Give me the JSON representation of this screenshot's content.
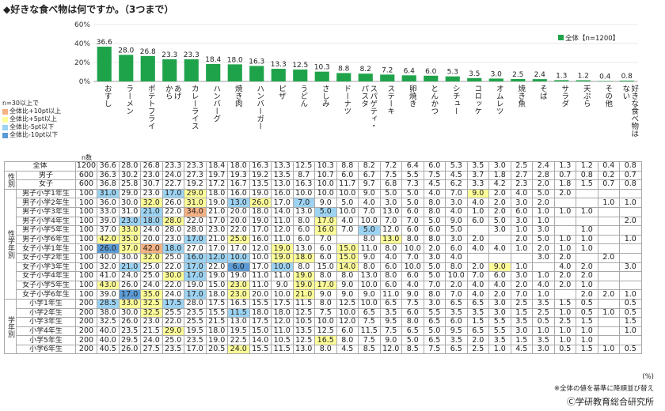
{
  "title": "◆好きな食べ物は何ですか。（3つまで）",
  "chart_data": {
    "type": "bar",
    "title": "◆好きな食べ物は何ですか。（3つまで）",
    "ylim": [
      0,
      60
    ],
    "yticks": [
      "0%",
      "20%",
      "40%",
      "60%"
    ],
    "legend": "全体【n=1200】",
    "legend_position": "top-right",
    "bar_color": "#1fa34a",
    "categories": [
      "おすし",
      "ラーメン",
      "ポテトフライ",
      "からあげ・フライドチキン",
      "カレーライス",
      "ハンバーグ",
      "焼き肉",
      "ハンバーガー",
      "ピザ",
      "うどん",
      "さしみ",
      "ドーナツ",
      "スパゲティ・パスタ",
      "ステーキ",
      "卵焼き",
      "とんかつ",
      "シチュー",
      "コロッケ",
      "オムレツ",
      "焼き魚",
      "そば",
      "サラダ",
      "天ぷら",
      "その他",
      "好きな食べ物はない"
    ],
    "category_labels": [
      "おすし",
      "ラーメン",
      "ポテトフライ",
      "から\nあげ",
      "カレーライス",
      "ハンバーグ",
      "焼き肉",
      "ハンバーガー",
      "ピザ",
      "うどん",
      "さしみ",
      "ドーナツ",
      "パスタ\nスパゲティ・",
      "ステーキ",
      "卵焼き",
      "とんかつ",
      "シチュー",
      "コロッケ",
      "オムレツ",
      "焼き魚",
      "そば",
      "サラダ",
      "天ぷら",
      "その他",
      "ない\n好きな食べ物は"
    ],
    "values": [
      36.6,
      28.0,
      26.8,
      23.3,
      23.3,
      18.4,
      18.0,
      16.3,
      13.3,
      12.5,
      10.3,
      8.8,
      8.2,
      7.2,
      6.4,
      6.0,
      5.3,
      3.5,
      3.0,
      2.5,
      2.4,
      1.3,
      1.2,
      0.4,
      0.8
    ],
    "value_labels": [
      "36.6",
      "28.0",
      "26.8",
      "23.3",
      "23.3",
      "18.4",
      "18.0",
      "16.3",
      "13.3",
      "12.5",
      "10.3",
      "8.8",
      "8.2",
      "7.2",
      "6.4",
      "6.0",
      "5.3",
      "3.5",
      "3.0",
      "2.5",
      "2.4",
      "1.3",
      "1.2",
      "0.4",
      "0.8"
    ]
  },
  "legend": {
    "heading": "n=30以上で",
    "items": [
      {
        "label": "全体比+10pt以上",
        "color": "#f4b183"
      },
      {
        "label": "全体比+5pt以上",
        "color": "#ffff99"
      },
      {
        "label": "全体比-5pt以下",
        "color": "#9dd3f2"
      },
      {
        "label": "全体比-10pt以下",
        "color": "#5b9bd5"
      }
    ]
  },
  "n_label": "n数",
  "colors": {
    "hi10": "#f4b183",
    "hi5": "#ffff99",
    "lo5": "#9dd3f2",
    "lo10": "#5b9bd5"
  },
  "table": {
    "groups": [
      {
        "label": "",
        "rows": [
          {
            "name": "全体",
            "n": "1200",
            "values": [
              "36.6",
              "28.0",
              "26.8",
              "23.3",
              "23.3",
              "18.4",
              "18.0",
              "16.3",
              "13.3",
              "12.5",
              "10.3",
              "8.8",
              "8.2",
              "7.2",
              "6.4",
              "6.0",
              "5.3",
              "3.5",
              "3.0",
              "2.5",
              "2.4",
              "1.3",
              "1.2",
              "0.4",
              "0.8"
            ],
            "hl": {}
          }
        ]
      },
      {
        "label": "性別",
        "rows": [
          {
            "name": "男子",
            "n": "600",
            "values": [
              "36.3",
              "30.2",
              "23.0",
              "24.0",
              "27.3",
              "19.7",
              "19.3",
              "19.2",
              "13.5",
              "8.7",
              "10.7",
              "6.0",
              "6.7",
              "7.5",
              "5.5",
              "7.5",
              "4.5",
              "3.7",
              "1.8",
              "2.7",
              "2.8",
              "0.7",
              "0.8",
              "0.2",
              "0.7"
            ],
            "hl": {}
          },
          {
            "name": "女子",
            "n": "600",
            "values": [
              "36.8",
              "25.8",
              "30.7",
              "22.7",
              "19.2",
              "17.2",
              "16.7",
              "13.5",
              "13.0",
              "16.3",
              "10.0",
              "11.7",
              "9.7",
              "6.8",
              "7.3",
              "4.5",
              "6.2",
              "3.3",
              "4.2",
              "2.3",
              "2.0",
              "1.8",
              "1.5",
              "0.7",
              "0.8"
            ],
            "hl": {}
          }
        ]
      },
      {
        "label": "性学年別",
        "rows": [
          {
            "name": "男子小学1年生",
            "n": "100",
            "values": [
              "31.0",
              "29.0",
              "23.0",
              "17.0",
              "29.0",
              "18.0",
              "16.0",
              "19.0",
              "16.0",
              "10.0",
              "10.0",
              "10.0",
              "9.0",
              "5.0",
              "5.0",
              "4.0",
              "7.0",
              "9.0",
              "2.0",
              "4.0",
              "5.0",
              "2.0",
              "",
              "",
              ""
            ],
            "hl": {
              "0": "lo5",
              "3": "lo5",
              "4": "hi5",
              "17": "hi5"
            }
          },
          {
            "name": "男子小学2年生",
            "n": "100",
            "values": [
              "36.0",
              "30.0",
              "32.0",
              "26.0",
              "31.0",
              "19.0",
              "13.0",
              "26.0",
              "17.0",
              "7.0",
              "9.0",
              "5.0",
              "4.0",
              "3.0",
              "5.0",
              "8.0",
              "3.0",
              "4.0",
              "2.0",
              "3.0",
              "2.0",
              "",
              "",
              "1.0",
              "1.0"
            ],
            "hl": {
              "2": "hi5",
              "4": "hi5",
              "6": "lo5",
              "7": "hi5",
              "9": "lo5"
            }
          },
          {
            "name": "男子小学3年生",
            "n": "100",
            "values": [
              "33.0",
              "31.0",
              "21.0",
              "22.0",
              "34.0",
              "21.0",
              "20.0",
              "18.0",
              "14.0",
              "13.0",
              "5.0",
              "10.0",
              "7.0",
              "13.0",
              "6.0",
              "8.0",
              "4.0",
              "1.0",
              "2.0",
              "6.0",
              "1.0",
              "1.0",
              "1.0",
              "",
              ""
            ],
            "hl": {
              "2": "lo5",
              "4": "hi10",
              "10": "lo5"
            }
          },
          {
            "name": "男子小学4年生",
            "n": "100",
            "values": [
              "39.0",
              "23.0",
              "18.0",
              "28.0",
              "22.0",
              "17.0",
              "20.0",
              "19.0",
              "11.0",
              "8.0",
              "17.0",
              "4.0",
              "10.0",
              "7.0",
              "7.0",
              "5.0",
              "9.0",
              "6.0",
              "5.0",
              "3.0",
              "1.0",
              "",
              "",
              "",
              "2.0"
            ],
            "hl": {
              "1": "lo5",
              "2": "lo5",
              "3": "hi5",
              "10": "hi5"
            }
          },
          {
            "name": "男子小学5年生",
            "n": "100",
            "values": [
              "37.0",
              "33.0",
              "24.0",
              "28.0",
              "28.0",
              "23.0",
              "22.0",
              "17.0",
              "12.0",
              "6.0",
              "16.0",
              "7.0",
              "5.0",
              "12.0",
              "6.0",
              "6.0",
              "5.0",
              "",
              "3.0",
              "1.0",
              "3.0",
              "",
              "1.0",
              "",
              ""
            ],
            "hl": {
              "1": "hi5",
              "10": "hi5",
              "12": "lo5"
            }
          },
          {
            "name": "男子小学6年生",
            "n": "100",
            "values": [
              "42.0",
              "35.0",
              "20.0",
              "23.0",
              "17.0",
              "21.0",
              "25.0",
              "16.0",
              "11.0",
              "6.0",
              "7.0",
              "",
              "8.0",
              "13.0",
              "8.0",
              "8.0",
              "3.0",
              "2.0",
              "",
              "2.0",
              "5.0",
              "1.0",
              "1.0",
              "",
              "1.0"
            ],
            "hl": {
              "0": "hi5",
              "1": "hi5",
              "4": "lo5",
              "6": "hi5",
              "13": "hi5"
            }
          },
          {
            "name": "女子小学1年生",
            "n": "100",
            "values": [
              "26.0",
              "37.0",
              "42.0",
              "18.0",
              "27.0",
              "17.0",
              "17.0",
              "12.0",
              "19.0",
              "13.0",
              "6.0",
              "15.0",
              "11.0",
              "8.0",
              "10.0",
              "2.0",
              "6.0",
              "4.0",
              "4.0",
              "1.0",
              "2.0",
              "1.0",
              "1.0",
              "",
              ""
            ],
            "hl": {
              "0": "lo10",
              "1": "hi5",
              "2": "hi10",
              "3": "lo5",
              "8": "hi5",
              "11": "hi5"
            }
          },
          {
            "name": "女子小学2年生",
            "n": "100",
            "values": [
              "40.0",
              "30.0",
              "32.0",
              "25.0",
              "16.0",
              "12.0",
              "10.0",
              "10.0",
              "19.0",
              "18.0",
              "6.0",
              "15.0",
              "9.0",
              "4.0",
              "7.0",
              "3.0",
              "4.0",
              "",
              "",
              "",
              "3.0",
              "2.0",
              "",
              "2.0",
              ""
            ],
            "hl": {
              "2": "hi5",
              "4": "lo5",
              "5": "lo5",
              "6": "lo5",
              "8": "hi5",
              "9": "hi5",
              "11": "hi5"
            }
          },
          {
            "name": "女子小学3年生",
            "n": "100",
            "values": [
              "32.0",
              "21.0",
              "25.0",
              "22.0",
              "17.0",
              "22.0",
              "6.0",
              "17.0",
              "10.0",
              "8.0",
              "15.0",
              "14.0",
              "8.0",
              "6.0",
              "10.0",
              "5.0",
              "8.0",
              "2.0",
              "9.0",
              "1.0",
              "",
              "4.0",
              "2.0",
              "",
              "3.0"
            ],
            "hl": {
              "1": "lo5",
              "4": "lo5",
              "6": "lo10",
              "8": "lo5",
              "11": "hi5",
              "18": "hi5"
            }
          },
          {
            "name": "女子小学4年生",
            "n": "100",
            "values": [
              "41.0",
              "24.0",
              "25.0",
              "30.0",
              "17.0",
              "19.0",
              "19.0",
              "11.0",
              "11.0",
              "19.0",
              "8.0",
              "8.0",
              "13.0",
              "8.0",
              "6.0",
              "5.0",
              "10.0",
              "7.0",
              "6.0",
              "3.0",
              "1.0",
              "2.0",
              "2.0",
              "",
              ""
            ],
            "hl": {
              "3": "hi5",
              "4": "lo5",
              "9": "hi5"
            }
          },
          {
            "name": "女子小学5年生",
            "n": "100",
            "values": [
              "43.0",
              "26.0",
              "24.0",
              "22.0",
              "19.0",
              "15.0",
              "23.0",
              "11.0",
              "9.0",
              "19.0",
              "17.0",
              "9.0",
              "10.0",
              "6.0",
              "4.0",
              "7.0",
              "2.0",
              "4.0",
              "4.0",
              "2.0",
              "4.0",
              "2.0",
              "1.0",
              "",
              ""
            ],
            "hl": {
              "0": "hi5",
              "6": "hi5",
              "9": "hi5",
              "10": "hi5"
            }
          },
          {
            "name": "女子小学6年生",
            "n": "100",
            "values": [
              "39.0",
              "17.0",
              "35.0",
              "24.0",
              "17.0",
              "18.0",
              "23.0",
              "20.0",
              "10.0",
              "21.0",
              "9.0",
              "9.0",
              "9.0",
              "11.0",
              "9.0",
              "8.0",
              "7.0",
              "4.0",
              "2.0",
              "7.0",
              "1.0",
              "",
              "2.0",
              "2.0",
              "1.0"
            ],
            "hl": {
              "1": "lo10",
              "2": "hi5",
              "4": "lo5",
              "6": "hi5",
              "9": "hi5"
            }
          }
        ]
      },
      {
        "label": "学年別",
        "rows": [
          {
            "name": "小学1年生",
            "n": "200",
            "values": [
              "28.5",
              "33.0",
              "32.5",
              "17.5",
              "28.0",
              "17.5",
              "16.5",
              "15.5",
              "17.5",
              "11.5",
              "8.0",
              "12.5",
              "10.0",
              "6.5",
              "7.5",
              "3.0",
              "6.5",
              "6.5",
              "3.0",
              "2.5",
              "3.5",
              "1.5",
              "0.5",
              "",
              "0.5"
            ],
            "hl": {
              "0": "lo5",
              "1": "hi5",
              "2": "hi5",
              "3": "lo5"
            }
          },
          {
            "name": "小学2年生",
            "n": "200",
            "values": [
              "38.0",
              "30.0",
              "32.5",
              "25.5",
              "23.5",
              "15.5",
              "11.5",
              "18.0",
              "18.0",
              "12.5",
              "7.5",
              "10.0",
              "6.5",
              "3.5",
              "6.0",
              "5.5",
              "3.5",
              "3.5",
              "3.0",
              "1.5",
              "2.5",
              "1.0",
              "0.5",
              "1.0",
              "0.5"
            ],
            "hl": {
              "2": "hi5",
              "6": "lo5"
            }
          },
          {
            "name": "小学3年生",
            "n": "200",
            "values": [
              "32.5",
              "26.0",
              "23.0",
              "22.0",
              "25.5",
              "21.5",
              "13.0",
              "17.5",
              "12.0",
              "10.5",
              "10.0",
              "12.0",
              "7.5",
              "9.5",
              "8.0",
              "6.5",
              "6.0",
              "1.5",
              "5.5",
              "3.5",
              "0.5",
              "2.5",
              "1.5",
              "",
              "1.5"
            ],
            "hl": {}
          },
          {
            "name": "小学4年生",
            "n": "200",
            "values": [
              "40.0",
              "23.5",
              "21.5",
              "29.0",
              "19.5",
              "18.0",
              "19.5",
              "15.0",
              "11.0",
              "13.5",
              "12.5",
              "6.0",
              "11.5",
              "7.5",
              "6.5",
              "5.0",
              "9.5",
              "6.5",
              "5.5",
              "3.0",
              "1.0",
              "1.0",
              "1.0",
              "",
              "1.0"
            ],
            "hl": {
              "3": "hi5"
            }
          },
          {
            "name": "小学5年生",
            "n": "200",
            "values": [
              "40.0",
              "29.5",
              "24.0",
              "25.0",
              "23.5",
              "19.0",
              "22.5",
              "14.0",
              "10.5",
              "12.5",
              "16.5",
              "8.0",
              "7.5",
              "9.0",
              "5.0",
              "6.5",
              "3.5",
              "2.0",
              "3.5",
              "1.5",
              "3.5",
              "1.0",
              "1.0",
              "",
              ""
            ],
            "hl": {
              "10": "hi5"
            }
          },
          {
            "name": "小学6年生",
            "n": "200",
            "values": [
              "40.5",
              "26.0",
              "27.5",
              "23.5",
              "17.0",
              "20.5",
              "24.0",
              "15.5",
              "11.5",
              "13.0",
              "8.0",
              "4.5",
              "8.5",
              "12.0",
              "8.5",
              "7.5",
              "6.5",
              "2.5",
              "1.0",
              "4.5",
              "3.0",
              "0.5",
              "1.5",
              "1.0",
              "0.5"
            ],
            "hl": {
              "6": "hi5"
            }
          }
        ]
      }
    ]
  },
  "pct_unit": "(%)",
  "note": "※全体の値を基準に降順並び替え",
  "source": "Ⓒ学研教育総合研究所"
}
